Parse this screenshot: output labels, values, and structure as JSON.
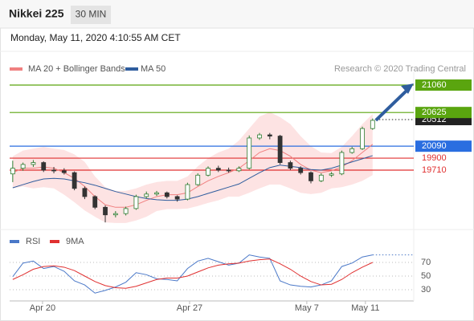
{
  "header": {
    "title": "Nikkei 225",
    "interval": "30 MIN",
    "timestamp": "Monday, May 11, 2020 4:10:55 AM CET"
  },
  "chart_data": [
    {
      "type": "candlestick",
      "credit": "Research © 2020 Trading Central",
      "up_color": "#2e7d32",
      "down_color": "#333333",
      "ohlc": [
        [
          19650,
          19860,
          19520,
          19740
        ],
        [
          19740,
          19830,
          19700,
          19800
        ],
        [
          19800,
          19870,
          19760,
          19830
        ],
        [
          19830,
          19850,
          19680,
          19710
        ],
        [
          19710,
          19760,
          19660,
          19700
        ],
        [
          19700,
          19740,
          19640,
          19670
        ],
        [
          19670,
          19690,
          19390,
          19420
        ],
        [
          19420,
          19450,
          19250,
          19290
        ],
        [
          19290,
          19310,
          19090,
          19120
        ],
        [
          19120,
          19150,
          18880,
          19000
        ],
        [
          19000,
          19060,
          18960,
          19020
        ],
        [
          19020,
          19130,
          18990,
          19100
        ],
        [
          19100,
          19320,
          19080,
          19290
        ],
        [
          19290,
          19370,
          19260,
          19330
        ],
        [
          19330,
          19380,
          19300,
          19350
        ],
        [
          19350,
          19370,
          19260,
          19290
        ],
        [
          19290,
          19310,
          19210,
          19250
        ],
        [
          19250,
          19510,
          19230,
          19480
        ],
        [
          19480,
          19660,
          19460,
          19630
        ],
        [
          19630,
          19770,
          19610,
          19740
        ],
        [
          19740,
          19780,
          19680,
          19710
        ],
        [
          19710,
          19750,
          19670,
          19700
        ],
        [
          19700,
          19770,
          19680,
          19740
        ],
        [
          19740,
          20260,
          19720,
          20220
        ],
        [
          20220,
          20300,
          20190,
          20270
        ],
        [
          20270,
          20300,
          20200,
          20250
        ],
        [
          20250,
          20270,
          19800,
          19830
        ],
        [
          19830,
          19860,
          19710,
          19740
        ],
        [
          19740,
          19770,
          19640,
          19670
        ],
        [
          19670,
          19690,
          19500,
          19540
        ],
        [
          19540,
          19660,
          19520,
          19630
        ],
        [
          19630,
          19680,
          19600,
          19650
        ],
        [
          19650,
          20020,
          19630,
          19990
        ],
        [
          19990,
          20080,
          19970,
          20050
        ],
        [
          20050,
          20400,
          20030,
          20370
        ],
        [
          20370,
          20530,
          20350,
          20500
        ]
      ],
      "series": [
        {
          "name": "MA 20 + Bollinger Bands",
          "color": "#f08080",
          "band_color": "#fde3e3",
          "values": [
            19670,
            19740,
            19740,
            19760,
            19740,
            19670,
            19580,
            19450,
            19290,
            19160,
            19120,
            19120,
            19160,
            19230,
            19290,
            19320,
            19320,
            19350,
            19450,
            19540,
            19610,
            19670,
            19740,
            19860,
            19990,
            20050,
            20020,
            19930,
            19800,
            19710,
            19670,
            19700,
            19760,
            19860,
            19990,
            20120
          ],
          "upper": [
            19930,
            20020,
            20050,
            20080,
            20050,
            20030,
            19960,
            19840,
            19610,
            19440,
            19380,
            19380,
            19420,
            19480,
            19520,
            19540,
            19540,
            19610,
            19770,
            19900,
            19990,
            20050,
            20180,
            20370,
            20560,
            20630,
            20550,
            20440,
            20250,
            20090,
            19990,
            19980,
            20080,
            20250,
            20440,
            20600
          ],
          "lower": [
            19420,
            19450,
            19420,
            19440,
            19420,
            19320,
            19200,
            19070,
            18970,
            18880,
            18870,
            18870,
            18910,
            18970,
            19060,
            19090,
            19090,
            19100,
            19140,
            19190,
            19230,
            19290,
            19290,
            19350,
            19420,
            19480,
            19480,
            19420,
            19350,
            19330,
            19350,
            19420,
            19440,
            19480,
            19540,
            19630
          ]
        },
        {
          "name": "MA 50",
          "color": "#2f5d9e",
          "values": [
            19430,
            19480,
            19530,
            19570,
            19580,
            19570,
            19540,
            19510,
            19470,
            19420,
            19370,
            19330,
            19290,
            19260,
            19240,
            19230,
            19230,
            19250,
            19290,
            19340,
            19390,
            19440,
            19490,
            19580,
            19670,
            19750,
            19790,
            19770,
            19750,
            19720,
            19710,
            19740,
            19790,
            19840,
            19890,
            19940
          ]
        }
      ],
      "levels": [
        {
          "value": 21060,
          "color": "#5aa50f",
          "style": "box"
        },
        {
          "value": 20625,
          "color": "#5aa50f",
          "style": "box"
        },
        {
          "value": 20512,
          "color": "#222222",
          "style": "box",
          "line": "dotted"
        },
        {
          "value": 20090,
          "color": "#2a6ee0",
          "style": "box"
        },
        {
          "value": 19900,
          "color": "#e03030",
          "style": "text"
        },
        {
          "value": 19710,
          "color": "#e03030",
          "style": "text"
        }
      ],
      "xlim": [
        -0.3,
        39
      ],
      "ylim": [
        18780,
        21264
      ],
      "xticks": [
        {
          "value": 2.9,
          "label": "Apr 20"
        },
        {
          "value": 17.2,
          "label": "Apr 27"
        },
        {
          "value": 28.6,
          "label": "May 7"
        },
        {
          "value": 34.3,
          "label": "May 11"
        }
      ]
    },
    {
      "type": "line",
      "series": [
        {
          "name": "RSI",
          "color": "#4a78c8",
          "values": [
            49,
            69,
            72,
            61,
            64,
            57,
            43,
            37,
            25,
            29,
            34,
            41,
            55,
            52,
            46,
            45,
            43,
            61,
            72,
            76,
            71,
            66,
            69,
            81,
            78,
            76,
            43,
            37,
            35,
            34,
            37,
            43,
            64,
            69,
            78,
            81
          ]
        },
        {
          "name": "9MA",
          "color": "#e03030",
          "values": [
            45,
            52,
            60,
            64,
            65,
            63,
            58,
            50,
            42,
            36,
            33,
            32,
            35,
            40,
            45,
            47,
            47,
            50,
            56,
            62,
            66,
            68,
            69,
            72,
            74,
            75,
            68,
            60,
            50,
            42,
            37,
            38,
            45,
            55,
            63,
            70
          ]
        }
      ],
      "ylim": [
        20,
        100
      ],
      "yticks": [
        70,
        50,
        30
      ],
      "grid": true
    }
  ]
}
